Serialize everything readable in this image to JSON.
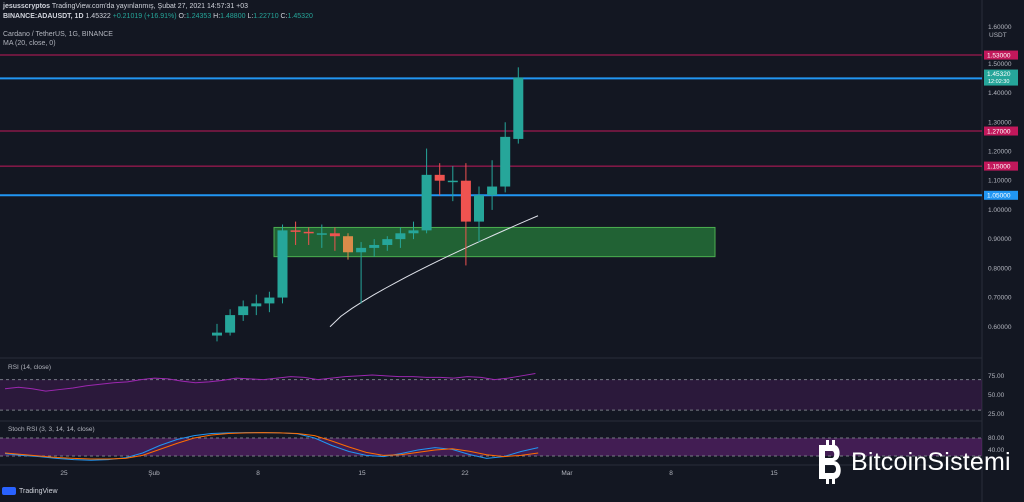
{
  "header": {
    "author": "jesusscryptos",
    "published_line": "TradingView.com'da yayınlanmış, Şubat 27, 2021 14:57:31 +03",
    "symbol": "BINANCE:ADAUSDT, 1D",
    "last": "1.45322",
    "change": "+0.21019 (+16.91%)",
    "o_label": "O:",
    "o": "1.24353",
    "h_label": "H:",
    "h": "1.48800",
    "l_label": "L:",
    "l": "1.22710",
    "c_label": "C:",
    "c": "1.45320",
    "title": "Cardano / TetherUS, 1G, BINANCE",
    "ma_label": "MA (20, close, 0)"
  },
  "axis": {
    "currency": "USDT",
    "top_value": "1.60000"
  },
  "indicators": {
    "rsi_label": "RSI (14, close)",
    "stoch_label": "Stoch RSI (3, 3, 14, 14, close)"
  },
  "footer": {
    "tradingview": "TradingView",
    "brand": "BitcoinSistemi"
  },
  "colors": {
    "background": "#131722",
    "up": "#26a69a",
    "down": "#ef5350",
    "flat": "#d98b4a",
    "support_zone": "#2ea043",
    "red_level": "#c2185b",
    "blue_level": "#2196f3",
    "rsi_line": "#9c27b0",
    "stoch_k": "#2196f3",
    "stoch_d": "#ff6d00"
  },
  "chart_data": [
    {
      "type": "candlestick",
      "title": "Cardano / TetherUS, 1G, BINANCE",
      "x_tick_labels": [
        "25",
        "Şub",
        "8",
        "15",
        "22",
        "Mar",
        "8",
        "15"
      ],
      "ylim": [
        0.5,
        1.65
      ],
      "y_tick_values": [
        0.6,
        0.7,
        0.8,
        0.9,
        1.0,
        1.1,
        1.2,
        1.3,
        1.4,
        1.5,
        1.6
      ],
      "y_tick_labels": [
        "0.60000",
        "0.70000",
        "0.80000",
        "0.90000",
        "1.00000",
        "1.10000",
        "1.20000",
        "1.30000",
        "1.40000",
        "1.50000",
        "1.60000"
      ],
      "candles": [
        {
          "o": 0.57,
          "h": 0.61,
          "l": 0.55,
          "c": 0.58
        },
        {
          "o": 0.58,
          "h": 0.66,
          "l": 0.57,
          "c": 0.64
        },
        {
          "o": 0.64,
          "h": 0.69,
          "l": 0.62,
          "c": 0.67
        },
        {
          "o": 0.67,
          "h": 0.71,
          "l": 0.64,
          "c": 0.68
        },
        {
          "o": 0.68,
          "h": 0.72,
          "l": 0.65,
          "c": 0.7
        },
        {
          "o": 0.7,
          "h": 0.95,
          "l": 0.68,
          "c": 0.93
        },
        {
          "o": 0.93,
          "h": 0.96,
          "l": 0.88,
          "c": 0.925
        },
        {
          "o": 0.925,
          "h": 0.94,
          "l": 0.88,
          "c": 0.92
        },
        {
          "o": 0.92,
          "h": 0.95,
          "l": 0.87,
          "c": 0.92
        },
        {
          "o": 0.92,
          "h": 0.94,
          "l": 0.86,
          "c": 0.91
        },
        {
          "o": 0.91,
          "h": 0.92,
          "l": 0.83,
          "c": 0.855
        },
        {
          "o": 0.855,
          "h": 0.89,
          "l": 0.68,
          "c": 0.87
        },
        {
          "o": 0.87,
          "h": 0.9,
          "l": 0.84,
          "c": 0.88
        },
        {
          "o": 0.88,
          "h": 0.91,
          "l": 0.86,
          "c": 0.9
        },
        {
          "o": 0.9,
          "h": 0.94,
          "l": 0.87,
          "c": 0.92
        },
        {
          "o": 0.92,
          "h": 0.96,
          "l": 0.9,
          "c": 0.93
        },
        {
          "o": 0.93,
          "h": 1.21,
          "l": 0.92,
          "c": 1.12
        },
        {
          "o": 1.12,
          "h": 1.16,
          "l": 1.05,
          "c": 1.1
        },
        {
          "o": 1.1,
          "h": 1.15,
          "l": 1.03,
          "c": 1.1
        },
        {
          "o": 1.1,
          "h": 1.16,
          "l": 0.81,
          "c": 0.96
        },
        {
          "o": 0.96,
          "h": 1.08,
          "l": 0.89,
          "c": 1.05
        },
        {
          "o": 1.05,
          "h": 1.17,
          "l": 1.0,
          "c": 1.08
        },
        {
          "o": 1.08,
          "h": 1.3,
          "l": 1.06,
          "c": 1.25
        },
        {
          "o": 1.243,
          "h": 1.488,
          "l": 1.227,
          "c": 1.453
        }
      ],
      "ma20": [
        0.9,
        0.92,
        0.94,
        0.96,
        0.98,
        1.0,
        1.02,
        1.04,
        1.06,
        1.08,
        1.1,
        1.12,
        1.14,
        1.16,
        1.18,
        1.2,
        1.22,
        1.24,
        1.26,
        1.28
      ],
      "ma20_start_index": 4,
      "levels": [
        {
          "value": 1.53,
          "label": "1.53000",
          "kind": "red"
        },
        {
          "value": 1.45,
          "label": "1.45000",
          "kind": "blue"
        },
        {
          "value": 1.27,
          "label": "1.27000",
          "kind": "red"
        },
        {
          "value": 1.15,
          "label": "1.15000",
          "kind": "red"
        },
        {
          "value": 1.05,
          "label": "1.05000",
          "kind": "blue"
        }
      ],
      "last_price_label": "1.45320",
      "last_price_timer": "12:02:30",
      "support_zone": {
        "from": 0.84,
        "to": 0.94
      }
    },
    {
      "type": "line",
      "title": "RSI (14, close)",
      "ylim": [
        25,
        80
      ],
      "y_tick_labels": [
        "75.00",
        "50.00",
        "25.00"
      ],
      "values": [
        58,
        60,
        58,
        55,
        57,
        59,
        62,
        64,
        66,
        67,
        70,
        72,
        71,
        68,
        66,
        67,
        69,
        72,
        71,
        70,
        72,
        74,
        73,
        70,
        72,
        74,
        75,
        76,
        75,
        74,
        74,
        73,
        73,
        72,
        74,
        73,
        70,
        72,
        75,
        78
      ]
    },
    {
      "type": "line",
      "title": "Stoch RSI (3, 3, 14, 14, close)",
      "ylim": [
        0,
        100
      ],
      "y_tick_labels": [
        "80.00",
        "40.00"
      ],
      "series": [
        {
          "name": "K",
          "values": [
            28,
            22,
            18,
            12,
            8,
            6,
            8,
            14,
            30,
            55,
            75,
            88,
            95,
            97,
            98,
            98,
            97,
            94,
            80,
            55,
            35,
            22,
            18,
            28,
            40,
            48,
            42,
            25,
            12,
            18,
            35,
            48
          ]
        },
        {
          "name": "D",
          "values": [
            30,
            25,
            20,
            15,
            12,
            10,
            10,
            12,
            22,
            42,
            62,
            80,
            90,
            95,
            97,
            98,
            97,
            95,
            88,
            70,
            50,
            32,
            22,
            24,
            32,
            40,
            44,
            36,
            24,
            18,
            22,
            30
          ]
        }
      ]
    }
  ]
}
